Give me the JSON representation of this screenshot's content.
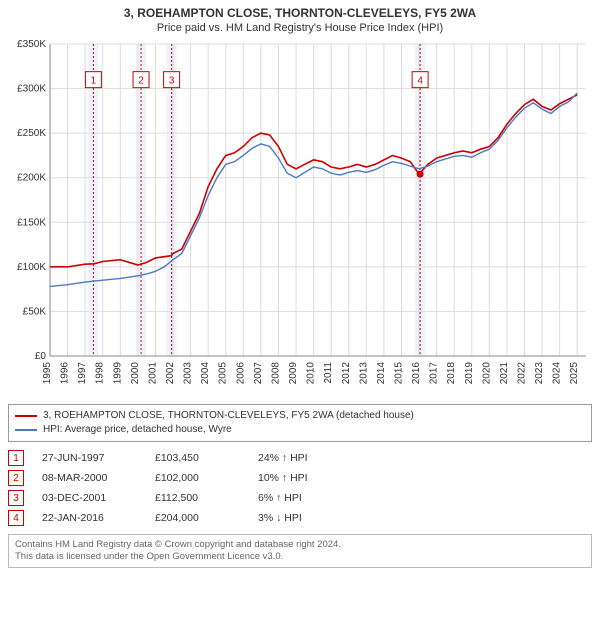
{
  "title": "3, ROEHAMPTON CLOSE, THORNTON-CLEVELEYS, FY5 2WA",
  "subtitle": "Price paid vs. HM Land Registry's House Price Index (HPI)",
  "chart": {
    "type": "line",
    "background_color": "#ffffff",
    "grid_color": "#dddddd",
    "axis_color": "#888888",
    "xlim": [
      1995,
      2025.5
    ],
    "ylim": [
      0,
      350000
    ],
    "ytick_step": 50000,
    "ytick_prefix": "£",
    "ytick_suffix": "K",
    "xtick_step": 1,
    "xtick_rotation": -90,
    "label_fontsize": 10,
    "series": [
      {
        "name": "3, ROEHAMPTON CLOSE, THORNTON-CLEVELEYS, FY5 2WA (detached house)",
        "color": "#cc0000",
        "line_width": 1.6,
        "points": [
          [
            1995,
            100000
          ],
          [
            1996,
            100000
          ],
          [
            1997,
            103000
          ],
          [
            1997.5,
            103450
          ],
          [
            1998,
            106000
          ],
          [
            1999,
            108000
          ],
          [
            2000,
            102000
          ],
          [
            2000.5,
            105000
          ],
          [
            2001,
            110000
          ],
          [
            2001.9,
            112500
          ],
          [
            2002,
            115000
          ],
          [
            2002.5,
            120000
          ],
          [
            2003,
            140000
          ],
          [
            2003.5,
            160000
          ],
          [
            2004,
            190000
          ],
          [
            2004.5,
            210000
          ],
          [
            2005,
            225000
          ],
          [
            2005.5,
            228000
          ],
          [
            2006,
            235000
          ],
          [
            2006.5,
            245000
          ],
          [
            2007,
            250000
          ],
          [
            2007.5,
            248000
          ],
          [
            2008,
            235000
          ],
          [
            2008.5,
            215000
          ],
          [
            2009,
            210000
          ],
          [
            2009.5,
            215000
          ],
          [
            2010,
            220000
          ],
          [
            2010.5,
            218000
          ],
          [
            2011,
            212000
          ],
          [
            2011.5,
            210000
          ],
          [
            2012,
            212000
          ],
          [
            2012.5,
            215000
          ],
          [
            2013,
            212000
          ],
          [
            2013.5,
            215000
          ],
          [
            2014,
            220000
          ],
          [
            2014.5,
            225000
          ],
          [
            2015,
            222000
          ],
          [
            2015.5,
            218000
          ],
          [
            2016,
            204000
          ],
          [
            2016.5,
            215000
          ],
          [
            2017,
            222000
          ],
          [
            2017.5,
            225000
          ],
          [
            2018,
            228000
          ],
          [
            2018.5,
            230000
          ],
          [
            2019,
            228000
          ],
          [
            2019.5,
            232000
          ],
          [
            2020,
            235000
          ],
          [
            2020.5,
            245000
          ],
          [
            2021,
            260000
          ],
          [
            2021.5,
            272000
          ],
          [
            2022,
            282000
          ],
          [
            2022.5,
            288000
          ],
          [
            2023,
            280000
          ],
          [
            2023.5,
            276000
          ],
          [
            2024,
            283000
          ],
          [
            2024.5,
            288000
          ],
          [
            2025,
            293000
          ]
        ]
      },
      {
        "name": "HPI: Average price, detached house, Wyre",
        "color": "#4a79c7",
        "line_width": 1.4,
        "points": [
          [
            1995,
            78000
          ],
          [
            1996,
            80000
          ],
          [
            1997,
            83000
          ],
          [
            1998,
            85000
          ],
          [
            1999,
            87000
          ],
          [
            2000,
            90000
          ],
          [
            2000.5,
            92000
          ],
          [
            2001,
            95000
          ],
          [
            2001.5,
            100000
          ],
          [
            2002,
            108000
          ],
          [
            2002.5,
            115000
          ],
          [
            2003,
            135000
          ],
          [
            2003.5,
            155000
          ],
          [
            2004,
            180000
          ],
          [
            2004.5,
            200000
          ],
          [
            2005,
            215000
          ],
          [
            2005.5,
            218000
          ],
          [
            2006,
            225000
          ],
          [
            2006.5,
            233000
          ],
          [
            2007,
            238000
          ],
          [
            2007.5,
            235000
          ],
          [
            2008,
            222000
          ],
          [
            2008.5,
            205000
          ],
          [
            2009,
            200000
          ],
          [
            2009.5,
            206000
          ],
          [
            2010,
            212000
          ],
          [
            2010.5,
            210000
          ],
          [
            2011,
            205000
          ],
          [
            2011.5,
            203000
          ],
          [
            2012,
            206000
          ],
          [
            2012.5,
            208000
          ],
          [
            2013,
            206000
          ],
          [
            2013.5,
            209000
          ],
          [
            2014,
            214000
          ],
          [
            2014.5,
            218000
          ],
          [
            2015,
            216000
          ],
          [
            2015.5,
            213000
          ],
          [
            2016,
            210000
          ],
          [
            2016.5,
            213000
          ],
          [
            2017,
            218000
          ],
          [
            2017.5,
            221000
          ],
          [
            2018,
            224000
          ],
          [
            2018.5,
            225000
          ],
          [
            2019,
            223000
          ],
          [
            2019.5,
            228000
          ],
          [
            2020,
            232000
          ],
          [
            2020.5,
            242000
          ],
          [
            2021,
            256000
          ],
          [
            2021.5,
            268000
          ],
          [
            2022,
            278000
          ],
          [
            2022.5,
            284000
          ],
          [
            2023,
            277000
          ],
          [
            2023.5,
            272000
          ],
          [
            2024,
            280000
          ],
          [
            2024.5,
            285000
          ],
          [
            2025,
            295000
          ]
        ]
      }
    ],
    "event_markers": [
      {
        "id": "1",
        "x": 1997.47,
        "box_y": 310000
      },
      {
        "id": "2",
        "x": 2000.18,
        "box_y": 310000
      },
      {
        "id": "3",
        "x": 2001.92,
        "box_y": 310000
      },
      {
        "id": "4",
        "x": 2016.06,
        "box_y": 310000
      }
    ],
    "marker_band_color": "#eef3fb",
    "marker_line_color": "#cc0000",
    "sale_dot_color": "#cc0000"
  },
  "legend": {
    "items": [
      {
        "color": "#cc0000",
        "label": "3, ROEHAMPTON CLOSE, THORNTON-CLEVELEYS, FY5 2WA (detached house)"
      },
      {
        "color": "#4a79c7",
        "label": "HPI: Average price, detached house, Wyre"
      }
    ]
  },
  "transactions": [
    {
      "id": "1",
      "date": "27-JUN-1997",
      "price": "£103,450",
      "delta": "24% ↑ HPI"
    },
    {
      "id": "2",
      "date": "08-MAR-2000",
      "price": "£102,000",
      "delta": "10% ↑ HPI"
    },
    {
      "id": "3",
      "date": "03-DEC-2001",
      "price": "£112,500",
      "delta": "6% ↑ HPI"
    },
    {
      "id": "4",
      "date": "22-JAN-2016",
      "price": "£204,000",
      "delta": "3% ↓ HPI"
    }
  ],
  "footer": {
    "line1": "Contains HM Land Registry data © Crown copyright and database right 2024.",
    "line2": "This data is licensed under the Open Government Licence v3.0."
  }
}
